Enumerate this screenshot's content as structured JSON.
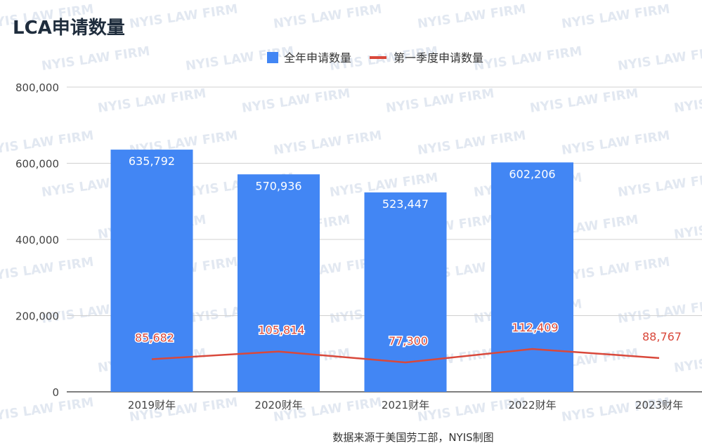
{
  "chart_data": {
    "type": "bar",
    "title": "LCA申请数量",
    "categories": [
      "2019财年",
      "2020财年",
      "2021财年",
      "2022财年",
      "2023财年"
    ],
    "ylim": [
      0,
      800000
    ],
    "yticks": [
      0,
      200000,
      400000,
      600000,
      800000
    ],
    "ytick_labels": [
      "0",
      "200,000",
      "400,000",
      "600,000",
      "800,000"
    ],
    "grid": true,
    "legend_position": "top",
    "series": [
      {
        "name": "全年申请数量",
        "type": "bar",
        "color": "#4286f4",
        "values": [
          635792,
          570936,
          523447,
          602206,
          null
        ],
        "labels": [
          "635,792",
          "570,936",
          "523,447",
          "602,206",
          ""
        ]
      },
      {
        "name": "第一季度申请数量",
        "type": "line",
        "color": "#d9483b",
        "values": [
          85682,
          105814,
          77300,
          112409,
          88767
        ],
        "labels": [
          "85,682",
          "105,814",
          "77,300",
          "112,409",
          "88,767"
        ]
      }
    ],
    "source_note": "数据来源于美国劳工部，NYIS制图",
    "watermark": "NYIS LAW FIRM"
  }
}
